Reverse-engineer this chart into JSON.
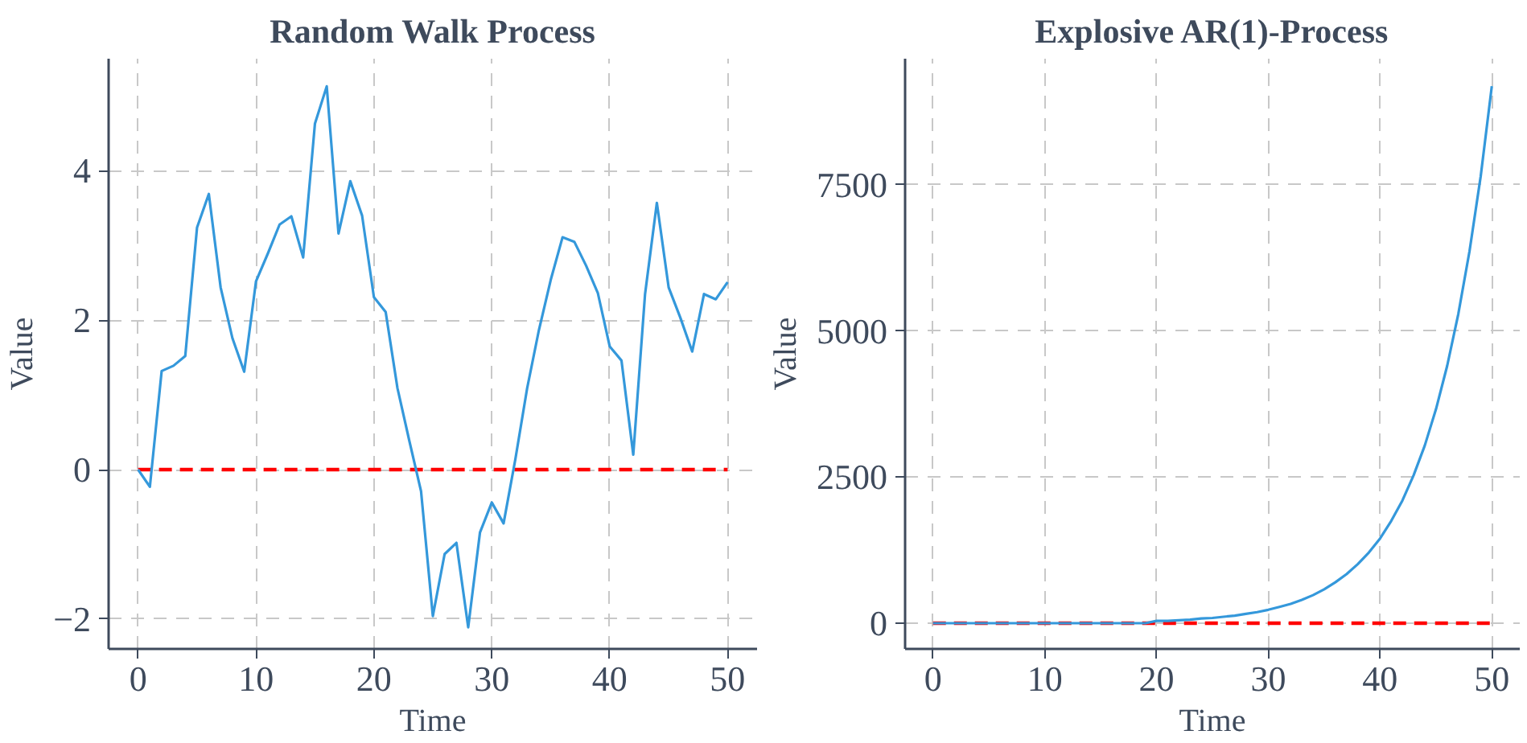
{
  "chart_data": [
    {
      "type": "line",
      "title": "Random Walk Process",
      "xlabel": "Time",
      "ylabel": "Value",
      "x": [
        0,
        1,
        2,
        3,
        4,
        5,
        6,
        7,
        8,
        9,
        10,
        11,
        12,
        13,
        14,
        15,
        16,
        17,
        18,
        19,
        20,
        21,
        22,
        23,
        24,
        25,
        26,
        27,
        28,
        29,
        30,
        31,
        32,
        33,
        34,
        35,
        36,
        37,
        38,
        39,
        40,
        41,
        42,
        43,
        44,
        45,
        46,
        47,
        48,
        49,
        50
      ],
      "series": [
        {
          "color": "#3498db",
          "values": [
            0,
            -0.23,
            1.32,
            1.39,
            1.52,
            3.24,
            3.69,
            2.44,
            1.76,
            1.31,
            2.52,
            2.89,
            3.28,
            3.39,
            2.84,
            4.63,
            5.13,
            3.16,
            3.86,
            3.4,
            2.31,
            2.11,
            1.09,
            0.39,
            -0.29,
            -1.96,
            -1.13,
            -0.98,
            -2.11,
            -0.84,
            -0.44,
            -0.72,
            0.14,
            1.09,
            1.87,
            2.54,
            3.11,
            3.05,
            2.73,
            2.36,
            1.65,
            1.46,
            0.2,
            2.35,
            3.57,
            2.44,
            2.03,
            1.58,
            2.35,
            2.28,
            2.51
          ]
        }
      ],
      "xlim": [
        -2.5,
        52.5
      ],
      "ylim": [
        -2.4,
        5.5
      ],
      "xticks": [
        0,
        10,
        20,
        30,
        40,
        50
      ],
      "yticks": [
        -2,
        0,
        2,
        4
      ],
      "ref_lines": [
        {
          "axis": "y",
          "value": 0,
          "color": "#ff0000",
          "line_style": "dashed"
        }
      ],
      "grid": true
    },
    {
      "type": "line",
      "title": "Explosive AR(1)-Process",
      "xlabel": "Time",
      "ylabel": "Value",
      "x": [
        0,
        1,
        2,
        3,
        4,
        5,
        6,
        7,
        8,
        9,
        10,
        11,
        12,
        13,
        14,
        15,
        16,
        17,
        18,
        19,
        20,
        21,
        22,
        23,
        24,
        25,
        26,
        27,
        28,
        29,
        30,
        31,
        32,
        33,
        34,
        35,
        36,
        37,
        38,
        39,
        40,
        41,
        42,
        43,
        44,
        45,
        46,
        47,
        48,
        49,
        50
      ],
      "series": [
        {
          "color": "#3498db",
          "values": [
            0,
            0,
            0,
            0,
            0,
            0,
            0,
            0,
            0,
            0,
            0,
            0,
            0,
            0,
            0,
            0,
            0,
            0,
            0,
            0,
            40,
            40,
            50,
            60,
            80,
            90,
            110,
            130,
            160,
            190,
            230,
            280,
            330,
            400,
            480,
            580,
            700,
            840,
            1010,
            1210,
            1450,
            1750,
            2100,
            2530,
            3040,
            3660,
            4400,
            5290,
            6360,
            7640,
            9190
          ]
        }
      ],
      "xlim": [
        -2.5,
        52.5
      ],
      "ylim": [
        -440,
        9660
      ],
      "xticks": [
        0,
        10,
        20,
        30,
        40,
        50
      ],
      "yticks": [
        0,
        2500,
        5000,
        7500
      ],
      "ref_lines": [
        {
          "axis": "y",
          "value": 0,
          "color": "#ff0000",
          "line_style": "dashed"
        }
      ],
      "grid": true
    }
  ]
}
